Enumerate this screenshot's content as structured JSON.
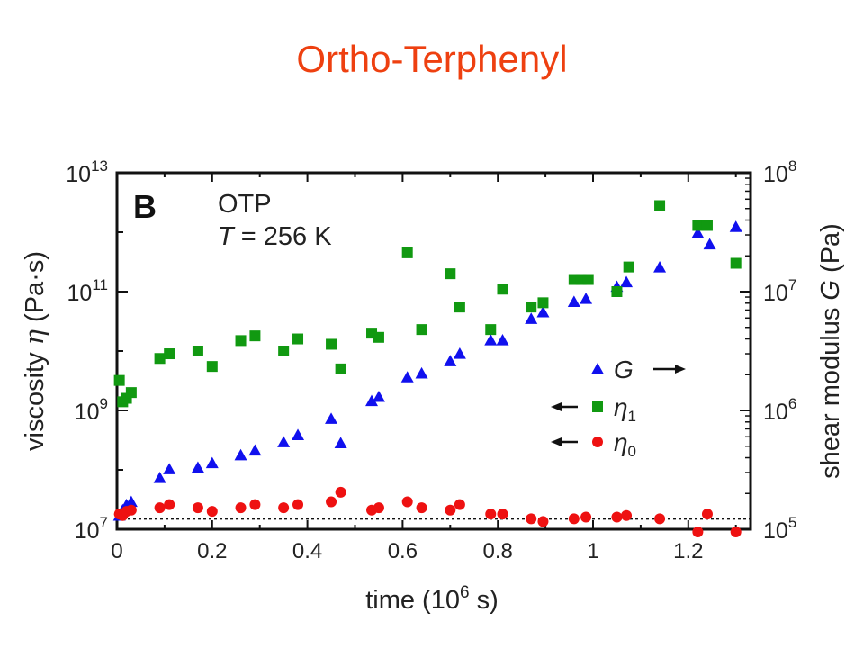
{
  "slide": {
    "title": "Ortho-Terphenyl",
    "title_color": "#ee4010"
  },
  "chart_data": {
    "type": "scatter",
    "panel_letter": "B",
    "annotation_line1": "OTP",
    "annotation_T": "T",
    "annotation_rest": " = 256 K",
    "xlabel": "time (10",
    "xlabel_exp": "6",
    "xlabel_end": " s)",
    "xlim": [
      0,
      1.33
    ],
    "x_ticks": [
      "0",
      "0.2",
      "0.4",
      "0.6",
      "0.8",
      "1",
      "1.2"
    ],
    "y_left": {
      "label": "viscosity ",
      "symbol": "η",
      "units": " (Pa·s)",
      "scale": "log",
      "lim": [
        10000000.0,
        10000000000000.0
      ],
      "tick_base": "10",
      "tick_exps": [
        "7",
        "9",
        "11",
        "13"
      ]
    },
    "y_right": {
      "label": "shear modulus ",
      "symbol": "G",
      "units": " (Pa)",
      "scale": "log",
      "lim": [
        100000.0,
        100000000.0
      ],
      "tick_base": "10",
      "tick_exps": [
        "5",
        "6",
        "7",
        "8"
      ]
    },
    "reference_line": {
      "axis": "left",
      "value": 15000000.0,
      "style": "dotted"
    },
    "legend": {
      "placement": "center-right",
      "entries": [
        {
          "symbol": "G",
          "subscript": "",
          "arrow": "right",
          "series": "G"
        },
        {
          "symbol": "η",
          "subscript": "1",
          "arrow": "left",
          "series": "eta1"
        },
        {
          "symbol": "η",
          "subscript": "0",
          "arrow": "left",
          "series": "eta0"
        }
      ]
    },
    "series": [
      {
        "name": "G",
        "axis": "right",
        "marker": "triangle",
        "color": "#1010ee",
        "points": [
          [
            0.005,
            130000.0
          ],
          [
            0.012,
            145000.0
          ],
          [
            0.02,
            160000.0
          ],
          [
            0.03,
            170000.0
          ],
          [
            0.09,
            270000.0
          ],
          [
            0.11,
            320000.0
          ],
          [
            0.17,
            330000.0
          ],
          [
            0.2,
            360000.0
          ],
          [
            0.26,
            420000.0
          ],
          [
            0.29,
            460000.0
          ],
          [
            0.35,
            540000.0
          ],
          [
            0.38,
            620000.0
          ],
          [
            0.45,
            850000.0
          ],
          [
            0.47,
            530000.0
          ],
          [
            0.535,
            1200000.0
          ],
          [
            0.55,
            1300000.0
          ],
          [
            0.61,
            1900000.0
          ],
          [
            0.64,
            2050000.0
          ],
          [
            0.7,
            2600000.0
          ],
          [
            0.72,
            3000000.0
          ],
          [
            0.785,
            3900000.0
          ],
          [
            0.81,
            3900000.0
          ],
          [
            0.87,
            5900000.0
          ],
          [
            0.895,
            6700000.0
          ],
          [
            0.96,
            8200000.0
          ],
          [
            0.985,
            8700000.0
          ],
          [
            1.05,
            11000000.0
          ],
          [
            1.07,
            12000000.0
          ],
          [
            1.14,
            16000000.0
          ],
          [
            1.22,
            31000000.0
          ],
          [
            1.245,
            25000000.0
          ],
          [
            1.3,
            35000000.0
          ]
        ]
      },
      {
        "name": "eta1",
        "axis": "left",
        "marker": "square",
        "color": "#119911",
        "points": [
          [
            0.005,
            3200000000.0
          ],
          [
            0.012,
            1400000000.0
          ],
          [
            0.02,
            1600000000.0
          ],
          [
            0.03,
            2000000000.0
          ],
          [
            0.09,
            7500000000.0
          ],
          [
            0.11,
            9000000000.0
          ],
          [
            0.17,
            10000000000.0
          ],
          [
            0.2,
            5500000000.0
          ],
          [
            0.26,
            15000000000.0
          ],
          [
            0.29,
            18000000000.0
          ],
          [
            0.35,
            10000000000.0
          ],
          [
            0.38,
            16000000000.0
          ],
          [
            0.45,
            13000000000.0
          ],
          [
            0.47,
            5000000000.0
          ],
          [
            0.535,
            20000000000.0
          ],
          [
            0.55,
            17000000000.0
          ],
          [
            0.61,
            450000000000.0
          ],
          [
            0.64,
            23000000000.0
          ],
          [
            0.7,
            200000000000.0
          ],
          [
            0.72,
            55000000000.0
          ],
          [
            0.785,
            23000000000.0
          ],
          [
            0.81,
            110000000000.0
          ],
          [
            0.87,
            55000000000.0
          ],
          [
            0.895,
            65000000000.0
          ],
          [
            0.96,
            160000000000.0
          ],
          [
            0.975,
            160000000000.0
          ],
          [
            0.99,
            160000000000.0
          ],
          [
            1.05,
            100000000000.0
          ],
          [
            1.075,
            260000000000.0
          ],
          [
            1.14,
            2800000000000.0
          ],
          [
            1.22,
            1300000000000.0
          ],
          [
            1.24,
            1300000000000.0
          ],
          [
            1.3,
            300000000000.0
          ]
        ]
      },
      {
        "name": "eta0",
        "axis": "left",
        "marker": "circle",
        "color": "#ee1111",
        "points": [
          [
            0.005,
            18000000.0
          ],
          [
            0.012,
            17000000.0
          ],
          [
            0.02,
            20000000.0
          ],
          [
            0.03,
            21000000.0
          ],
          [
            0.09,
            23000000.0
          ],
          [
            0.11,
            26000000.0
          ],
          [
            0.17,
            23000000.0
          ],
          [
            0.2,
            20000000.0
          ],
          [
            0.26,
            23000000.0
          ],
          [
            0.29,
            26000000.0
          ],
          [
            0.35,
            23000000.0
          ],
          [
            0.38,
            26000000.0
          ],
          [
            0.45,
            29000000.0
          ],
          [
            0.47,
            42000000.0
          ],
          [
            0.535,
            21000000.0
          ],
          [
            0.55,
            23000000.0
          ],
          [
            0.61,
            29000000.0
          ],
          [
            0.64,
            23000000.0
          ],
          [
            0.7,
            21000000.0
          ],
          [
            0.72,
            26000000.0
          ],
          [
            0.785,
            18000000.0
          ],
          [
            0.81,
            18000000.0
          ],
          [
            0.87,
            15000000.0
          ],
          [
            0.895,
            13500000.0
          ],
          [
            0.96,
            15000000.0
          ],
          [
            0.985,
            16000000.0
          ],
          [
            1.05,
            16000000.0
          ],
          [
            1.07,
            17000000.0
          ],
          [
            1.14,
            15000000.0
          ],
          [
            1.22,
            9000000.0
          ],
          [
            1.24,
            18000000.0
          ],
          [
            1.3,
            9000000.0
          ]
        ]
      }
    ]
  }
}
